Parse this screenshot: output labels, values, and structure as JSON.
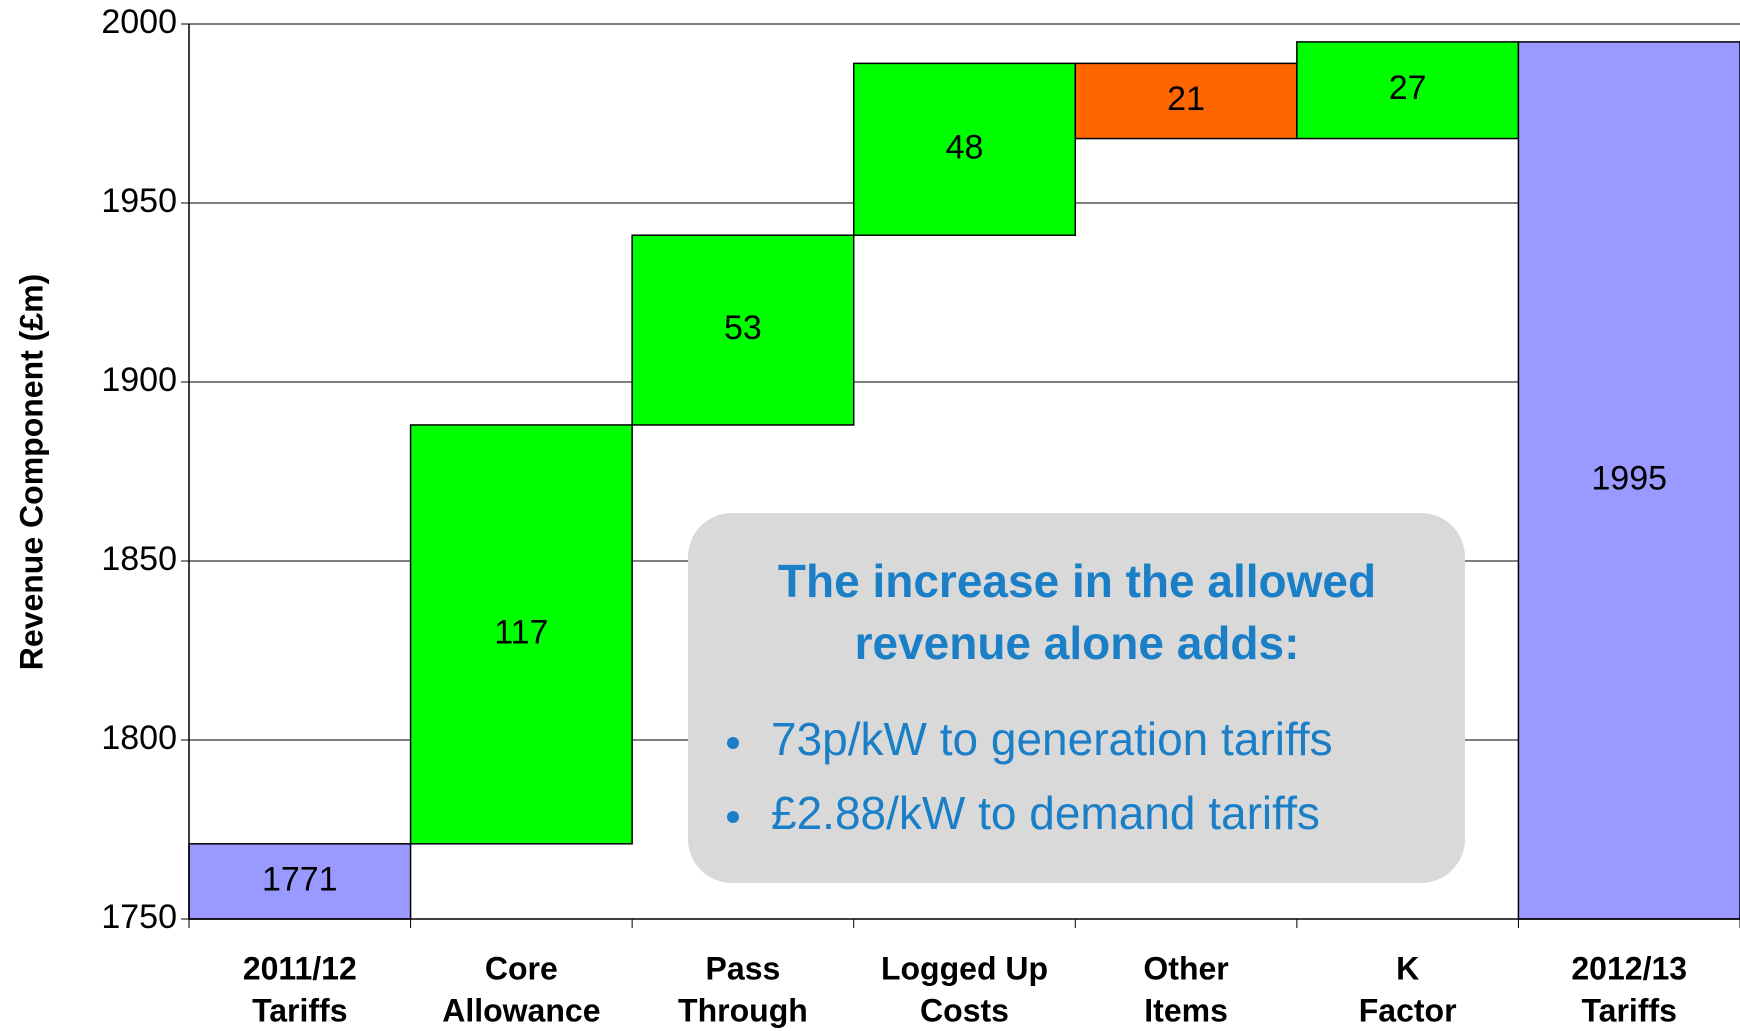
{
  "chart_data": {
    "type": "waterfall",
    "y_label": "Revenue Component (£m)",
    "categories": [
      [
        "2011/12",
        "Tariffs"
      ],
      [
        "Core",
        "Allowance"
      ],
      [
        "Pass",
        "Through"
      ],
      [
        "Logged Up",
        "Costs"
      ],
      [
        "Other",
        "Items"
      ],
      [
        "K",
        "Factor"
      ],
      [
        "2012/13",
        "Tariffs"
      ]
    ],
    "values": [
      1771,
      117,
      53,
      48,
      21,
      27,
      1995
    ],
    "measures": [
      "total",
      "increase",
      "increase",
      "increase",
      "decrease",
      "increase",
      "total"
    ],
    "colors": {
      "total": "#9999ff",
      "increase": "#00ff00",
      "decrease": "#ff6600"
    },
    "ylim": [
      1750,
      2000
    ],
    "yticks": [
      1750,
      1800,
      1850,
      1900,
      1950,
      2000
    ],
    "grid": true,
    "annotation": {
      "title": [
        "The increase in the allowed",
        "revenue alone adds:"
      ],
      "bullets": [
        "73p/kW to generation tariffs",
        "£2.88/kW to demand tariffs"
      ]
    }
  }
}
